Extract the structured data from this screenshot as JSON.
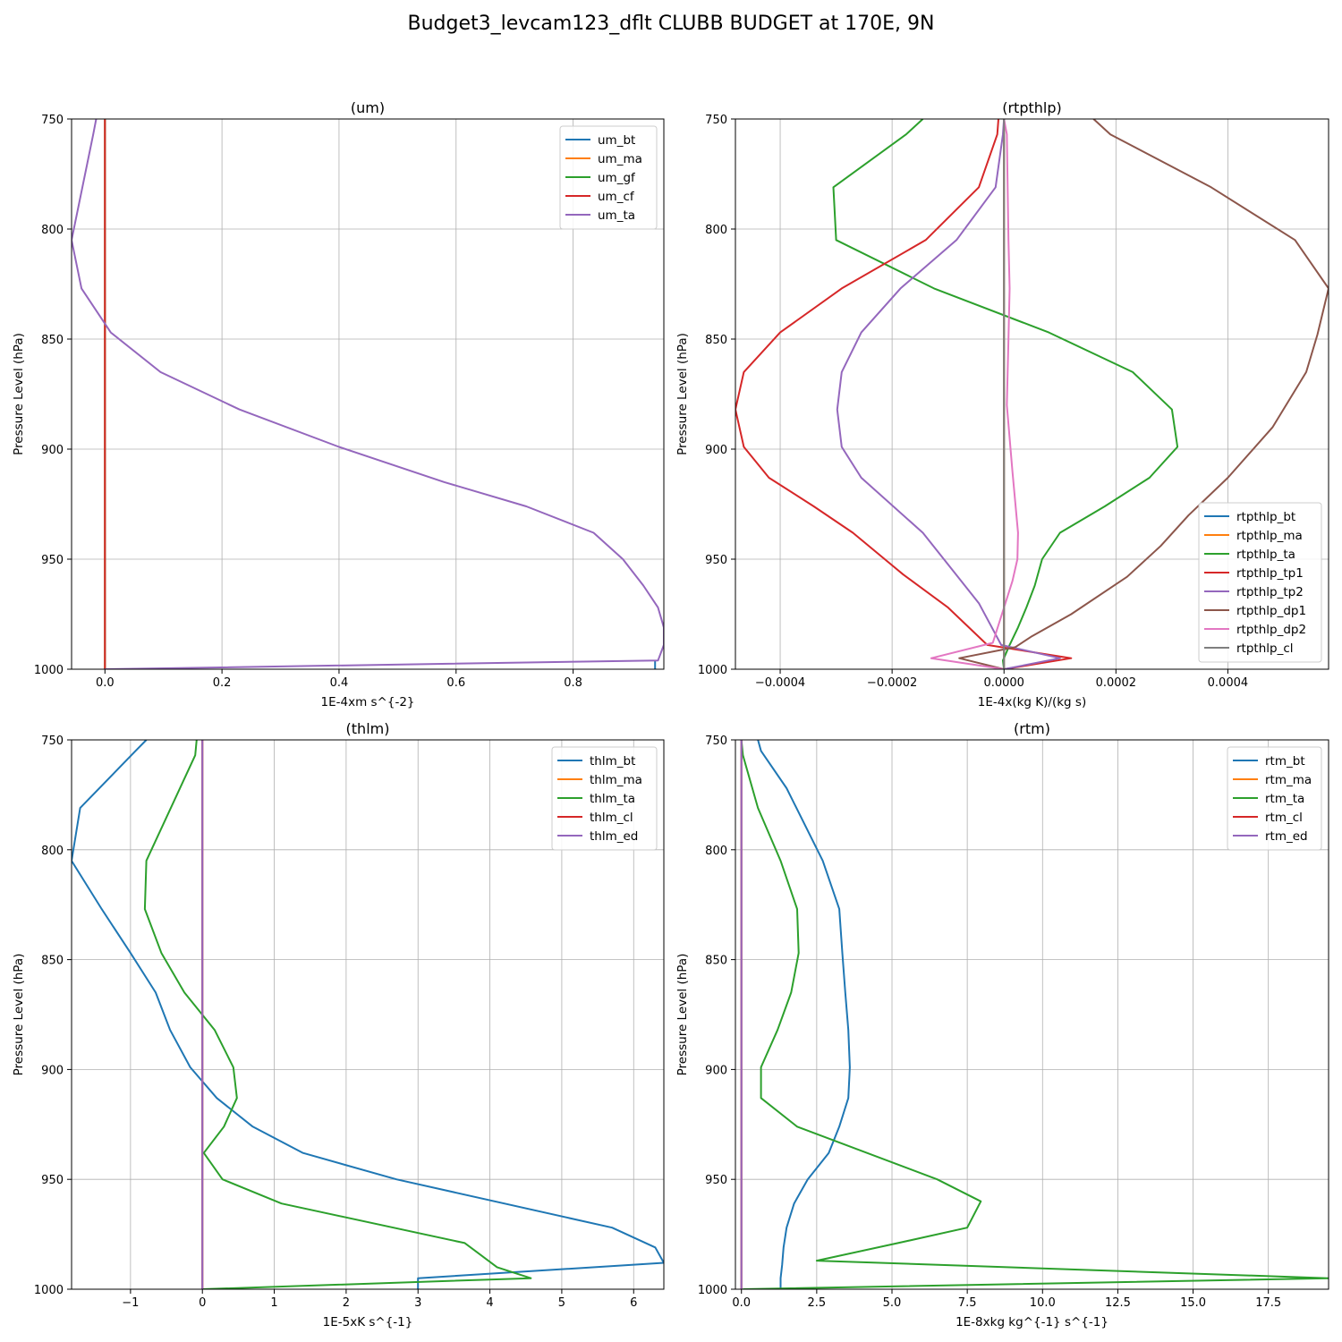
{
  "figure": {
    "title": "Budget3_levcam123_dflt CLUBB BUDGET at 170E, 9N"
  },
  "colors": {
    "C0": "#1f77b4",
    "C1": "#ff7f0e",
    "C2": "#2ca02c",
    "C3": "#d62728",
    "C4": "#9467bd",
    "C5": "#8c564b",
    "C6": "#e377c2",
    "C7": "#7f7f7f"
  },
  "chart_data": [
    {
      "type": "line",
      "title": "(um)",
      "xlabel": "1E-4xm s^{-2}",
      "ylabel": "Pressure Level (hPa)",
      "xlim": [
        -0.057,
        0.955
      ],
      "ylim": [
        1000,
        750
      ],
      "xticks": [
        0.0,
        0.2,
        0.4,
        0.6,
        0.8
      ],
      "xtick_labels": [
        "0.0",
        "0.2",
        "0.4",
        "0.6",
        "0.8"
      ],
      "yticks": [
        750,
        800,
        850,
        900,
        950,
        1000
      ],
      "ytick_labels": [
        "750",
        "800",
        "850",
        "900",
        "950",
        "1000"
      ],
      "grid": true,
      "legend_loc": "upper right",
      "series": [
        {
          "name": "um_bt",
          "color": "C0",
          "points": [
            [
              0.94,
              1000
            ],
            [
              0.94,
              996
            ]
          ]
        },
        {
          "name": "um_ma",
          "color": "C1",
          "points": [
            [
              0,
              1000
            ],
            [
              0,
              750
            ]
          ]
        },
        {
          "name": "um_gf",
          "color": "C2",
          "points": [
            [
              0,
              1000
            ],
            [
              0,
              750
            ]
          ]
        },
        {
          "name": "um_cf",
          "color": "C3",
          "points": [
            [
              0,
              1000
            ],
            [
              0,
              750
            ]
          ]
        },
        {
          "name": "um_ta",
          "color": "C4",
          "points": [
            [
              -0.015,
              750
            ],
            [
              -0.02,
              757
            ],
            [
              -0.057,
              805
            ],
            [
              -0.04,
              827
            ],
            [
              0.01,
              847
            ],
            [
              0.095,
              865
            ],
            [
              0.23,
              882
            ],
            [
              0.4,
              899
            ],
            [
              0.58,
              915
            ],
            [
              0.72,
              926
            ],
            [
              0.835,
              938
            ],
            [
              0.885,
              950
            ],
            [
              0.92,
              962
            ],
            [
              0.945,
              972
            ],
            [
              0.955,
              981
            ],
            [
              0.955,
              989
            ],
            [
              0.945,
              996
            ],
            [
              0.0,
              1000
            ]
          ]
        }
      ]
    },
    {
      "type": "line",
      "title": "(rtpthlp)",
      "xlabel": "1E-4x(kg K)/(kg s)",
      "ylabel": "Pressure Level (hPa)",
      "xlim": [
        -0.00048,
        0.00058
      ],
      "ylim": [
        1000,
        750
      ],
      "xticks": [
        -0.0004,
        -0.0002,
        0.0,
        0.0002,
        0.0004
      ],
      "xtick_labels": [
        "−0.0004",
        "−0.0002",
        "0.0000",
        "0.0002",
        "0.0004"
      ],
      "yticks": [
        750,
        800,
        850,
        900,
        950,
        1000
      ],
      "ytick_labels": [
        "750",
        "800",
        "850",
        "900",
        "950",
        "1000"
      ],
      "grid": true,
      "legend_loc": "lower right",
      "series": [
        {
          "name": "rtpthlp_bt",
          "color": "C0",
          "points": [
            [
              0,
              1000
            ],
            [
              0,
              750
            ]
          ]
        },
        {
          "name": "rtpthlp_ma",
          "color": "C1",
          "points": [
            [
              0,
              1000
            ],
            [
              0,
              750
            ]
          ]
        },
        {
          "name": "rtpthlp_ta",
          "color": "C2",
          "points": [
            [
              -0.000145,
              750
            ],
            [
              -0.000175,
              757
            ],
            [
              -0.000305,
              781
            ],
            [
              -0.0003,
              805
            ],
            [
              -0.000125,
              827
            ],
            [
              8e-05,
              847
            ],
            [
              0.00023,
              865
            ],
            [
              0.0003,
              882
            ],
            [
              0.00031,
              899
            ],
            [
              0.00026,
              913
            ],
            [
              0.00018,
              926
            ],
            [
              0.0001,
              938
            ],
            [
              6.8e-05,
              950
            ],
            [
              5.5e-05,
              962
            ],
            [
              4e-05,
              972
            ],
            [
              2.5e-05,
              981
            ],
            [
              1e-05,
              989
            ],
            [
              -2e-06,
              996
            ],
            [
              0,
              1000
            ]
          ]
        },
        {
          "name": "rtpthlp_tp1",
          "color": "C3",
          "points": [
            [
              -1e-05,
              750
            ],
            [
              -1.2e-05,
              757
            ],
            [
              -4.5e-05,
              781
            ],
            [
              -0.00014,
              805
            ],
            [
              -0.00029,
              827
            ],
            [
              -0.0004,
              847
            ],
            [
              -0.000465,
              865
            ],
            [
              -0.00048,
              882
            ],
            [
              -0.000465,
              899
            ],
            [
              -0.00042,
              913
            ],
            [
              -0.00034,
              926
            ],
            [
              -0.00027,
              938
            ],
            [
              -0.00018,
              957
            ],
            [
              -0.0001,
              972
            ],
            [
              -3e-05,
              989
            ],
            [
              0.00012,
              995
            ],
            [
              0,
              1000
            ]
          ]
        },
        {
          "name": "rtpthlp_tp2",
          "color": "C4",
          "points": [
            [
              0,
              750
            ],
            [
              -2e-06,
              757
            ],
            [
              -1.5e-05,
              781
            ],
            [
              -8.5e-05,
              805
            ],
            [
              -0.000185,
              827
            ],
            [
              -0.000255,
              847
            ],
            [
              -0.00029,
              865
            ],
            [
              -0.000298,
              882
            ],
            [
              -0.00029,
              899
            ],
            [
              -0.000255,
              913
            ],
            [
              -0.000145,
              938
            ],
            [
              -4.5e-05,
              970
            ],
            [
              -5e-06,
              989
            ],
            [
              0.0001,
              995
            ],
            [
              0,
              1000
            ]
          ]
        },
        {
          "name": "rtpthlp_dp1",
          "color": "C5",
          "points": [
            [
              0.00016,
              750
            ],
            [
              0.00019,
              757
            ],
            [
              0.00037,
              781
            ],
            [
              0.00052,
              805
            ],
            [
              0.00058,
              827
            ],
            [
              0.00056,
              848
            ],
            [
              0.00054,
              865
            ],
            [
              0.00048,
              890
            ],
            [
              0.0004,
              913
            ],
            [
              0.00033,
              930
            ],
            [
              0.00028,
              944
            ],
            [
              0.00022,
              958
            ],
            [
              0.00012,
              975
            ],
            [
              5e-05,
              985
            ],
            [
              2e-05,
              990
            ],
            [
              -8e-05,
              995
            ],
            [
              0,
              1000
            ]
          ]
        },
        {
          "name": "rtpthlp_dp2",
          "color": "C6",
          "points": [
            [
              0,
              750
            ],
            [
              5e-06,
              757
            ],
            [
              8e-06,
              805
            ],
            [
              1e-05,
              827
            ],
            [
              8e-06,
              850
            ],
            [
              5e-06,
              880
            ],
            [
              1.5e-05,
              910
            ],
            [
              2.5e-05,
              938
            ],
            [
              2.4e-05,
              950
            ],
            [
              1.5e-05,
              960
            ],
            [
              -2e-05,
              988
            ],
            [
              -0.00013,
              995
            ],
            [
              0,
              1000
            ]
          ]
        },
        {
          "name": "rtpthlp_cl",
          "color": "C7",
          "points": [
            [
              0,
              1000
            ],
            [
              0,
              750
            ]
          ]
        }
      ]
    },
    {
      "type": "line",
      "title": "(thlm)",
      "xlabel": "1E-5xK s^{-1}",
      "ylabel": "Pressure Level (hPa)",
      "xlim": [
        -1.82,
        6.42
      ],
      "ylim": [
        1000,
        750
      ],
      "xticks": [
        -1,
        0,
        1,
        2,
        3,
        4,
        5,
        6
      ],
      "xtick_labels": [
        "−1",
        "0",
        "1",
        "2",
        "3",
        "4",
        "5",
        "6"
      ],
      "yticks": [
        750,
        800,
        850,
        900,
        950,
        1000
      ],
      "ytick_labels": [
        "750",
        "800",
        "850",
        "900",
        "950",
        "1000"
      ],
      "grid": true,
      "legend_loc": "upper right",
      "series": [
        {
          "name": "thlm_bt",
          "color": "C0",
          "points": [
            [
              -0.78,
              750
            ],
            [
              -0.93,
              755
            ],
            [
              -1.7,
              781
            ],
            [
              -1.82,
              805
            ],
            [
              -1.4,
              827
            ],
            [
              -1.0,
              847
            ],
            [
              -0.65,
              865
            ],
            [
              -0.45,
              882
            ],
            [
              -0.17,
              899
            ],
            [
              0.2,
              913
            ],
            [
              0.7,
              926
            ],
            [
              1.4,
              938
            ],
            [
              2.7,
              950
            ],
            [
              5.7,
              972
            ],
            [
              6.3,
              981
            ],
            [
              6.42,
              988
            ],
            [
              3.0,
              995
            ],
            [
              3.0,
              1000
            ]
          ]
        },
        {
          "name": "thlm_ma",
          "color": "C1",
          "points": [
            [
              0,
              1000
            ],
            [
              0,
              750
            ]
          ]
        },
        {
          "name": "thlm_ta",
          "color": "C2",
          "points": [
            [
              -0.08,
              750
            ],
            [
              -0.1,
              757
            ],
            [
              -0.78,
              805
            ],
            [
              -0.8,
              827
            ],
            [
              -0.57,
              847
            ],
            [
              -0.25,
              865
            ],
            [
              0.17,
              882
            ],
            [
              0.43,
              899
            ],
            [
              0.48,
              913
            ],
            [
              0.3,
              926
            ],
            [
              0.02,
              938
            ],
            [
              0.28,
              950
            ],
            [
              1.1,
              961
            ],
            [
              3.65,
              979
            ],
            [
              4.1,
              990
            ],
            [
              4.57,
              995
            ],
            [
              0,
              1000
            ]
          ]
        },
        {
          "name": "thlm_cl",
          "color": "C3",
          "points": [
            [
              0,
              1000
            ],
            [
              0,
              750
            ]
          ]
        },
        {
          "name": "thlm_ed",
          "color": "C4",
          "points": [
            [
              0,
              1000
            ],
            [
              0,
              750
            ]
          ]
        }
      ]
    },
    {
      "type": "line",
      "title": "(rtm)",
      "xlabel": "1E-8xkg kg^{-1} s^{-1}",
      "ylabel": "Pressure Level (hPa)",
      "xlim": [
        -0.2,
        19.5
      ],
      "ylim": [
        1000,
        750
      ],
      "xticks": [
        0.0,
        2.5,
        5.0,
        7.5,
        10.0,
        12.5,
        15.0,
        17.5
      ],
      "xtick_labels": [
        "0.0",
        "2.5",
        "5.0",
        "7.5",
        "10.0",
        "12.5",
        "15.0",
        "17.5"
      ],
      "yticks": [
        750,
        800,
        850,
        900,
        950,
        1000
      ],
      "ytick_labels": [
        "750",
        "800",
        "850",
        "900",
        "950",
        "1000"
      ],
      "grid": true,
      "legend_loc": "upper right",
      "series": [
        {
          "name": "rtm_bt",
          "color": "C0",
          "points": [
            [
              0.55,
              750
            ],
            [
              0.65,
              755
            ],
            [
              1.5,
              772
            ],
            [
              2.7,
              805
            ],
            [
              3.25,
              827
            ],
            [
              3.35,
              847
            ],
            [
              3.45,
              865
            ],
            [
              3.55,
              882
            ],
            [
              3.6,
              899
            ],
            [
              3.55,
              913
            ],
            [
              3.25,
              926
            ],
            [
              2.9,
              938
            ],
            [
              2.2,
              950
            ],
            [
              1.75,
              961
            ],
            [
              1.5,
              972
            ],
            [
              1.4,
              981
            ],
            [
              1.35,
              989
            ],
            [
              1.3,
              995
            ],
            [
              1.3,
              1000
            ]
          ]
        },
        {
          "name": "rtm_ma",
          "color": "C1",
          "points": [
            [
              0,
              1000
            ],
            [
              0,
              750
            ]
          ]
        },
        {
          "name": "rtm_ta",
          "color": "C2",
          "points": [
            [
              0,
              750
            ],
            [
              0.05,
              757
            ],
            [
              0.55,
              781
            ],
            [
              1.3,
              805
            ],
            [
              1.85,
              827
            ],
            [
              1.9,
              847
            ],
            [
              1.65,
              865
            ],
            [
              1.2,
              882
            ],
            [
              0.65,
              899
            ],
            [
              0.65,
              913
            ],
            [
              1.85,
              926
            ],
            [
              6.5,
              950
            ],
            [
              7.95,
              960
            ],
            [
              7.5,
              972
            ],
            [
              5.2,
              979
            ],
            [
              2.5,
              987
            ],
            [
              19.5,
              995
            ],
            [
              0.05,
              1000
            ]
          ]
        },
        {
          "name": "rtm_cl",
          "color": "C3",
          "points": [
            [
              0,
              1000
            ],
            [
              0,
              750
            ]
          ]
        },
        {
          "name": "rtm_ed",
          "color": "C4",
          "points": [
            [
              0,
              1000
            ],
            [
              0,
              750
            ]
          ]
        }
      ]
    }
  ]
}
